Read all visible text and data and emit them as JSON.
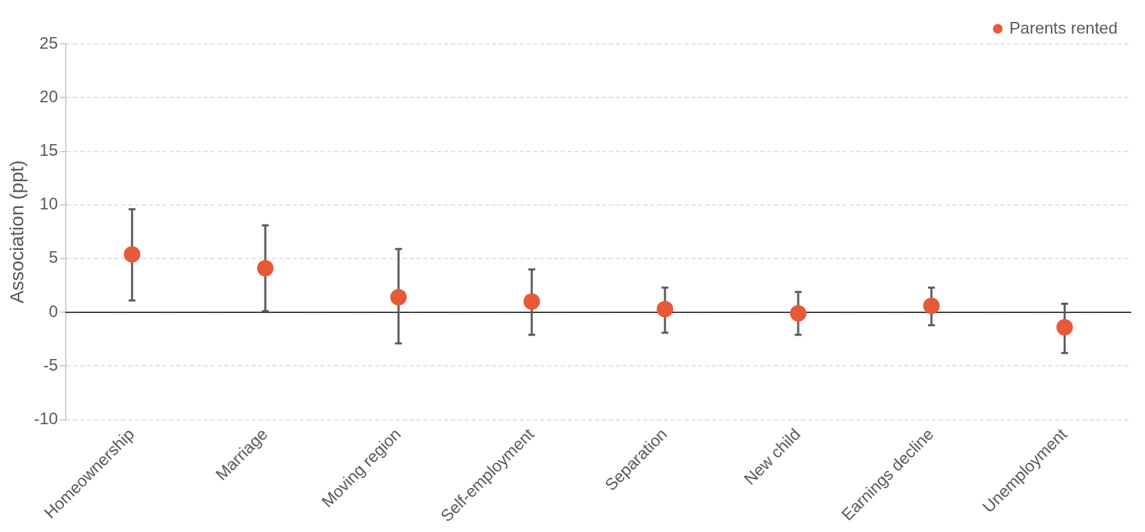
{
  "chart_data": {
    "type": "scatter",
    "ylabel": "Association (ppt)",
    "categories": [
      "Homeownership",
      "Marriage",
      "Moving region",
      "Self-employment",
      "Separation",
      "New child",
      "Earnings decline",
      "Unemployment"
    ],
    "series": [
      {
        "name": "Parents rented",
        "color": "#e8593a",
        "values": [
          5.4,
          4.1,
          1.4,
          1.0,
          0.3,
          -0.1,
          0.6,
          -1.4
        ],
        "errors": [
          [
            1.1,
            9.6
          ],
          [
            0.1,
            8.1
          ],
          [
            -2.9,
            5.9
          ],
          [
            -2.1,
            4.0
          ],
          [
            -1.9,
            2.3
          ],
          [
            -2.1,
            1.9
          ],
          [
            -1.2,
            2.3
          ],
          [
            -3.8,
            0.8
          ]
        ]
      }
    ],
    "ylim": [
      -10,
      25
    ],
    "yticks": [
      -10,
      -5,
      0,
      5,
      10,
      15,
      20,
      25
    ],
    "ref_lines": [
      {
        "axis": "y",
        "value": 0,
        "color": "#000000"
      }
    ],
    "grid": "y",
    "legend": "top right",
    "marker": "circle"
  }
}
